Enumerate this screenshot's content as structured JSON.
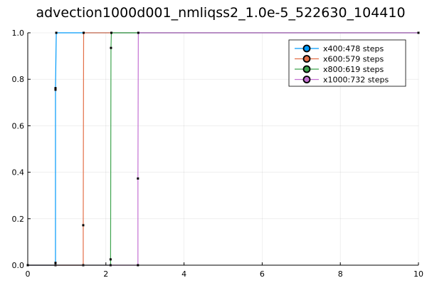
{
  "chart_data": {
    "type": "line",
    "title": "advection1000d001_nmliqss2_1.0e-5_522630_104410",
    "xlim": [
      0,
      10
    ],
    "ylim": [
      0,
      1
    ],
    "x_ticks": [
      "0",
      "2",
      "4",
      "6",
      "8",
      "10"
    ],
    "y_ticks": [
      "0.0",
      "0.2",
      "0.4",
      "0.6",
      "0.8",
      "1.0"
    ],
    "grid": true,
    "legend_position": "top-right",
    "series": [
      {
        "name": "x400:478 steps",
        "color": "#009AFA",
        "points": [
          [
            0,
            0
          ],
          [
            0.71,
            0
          ],
          [
            0.71,
            0.01
          ],
          [
            0.71,
            0.755
          ],
          [
            0.71,
            0.762
          ],
          [
            0.73,
            1.0
          ],
          [
            10,
            1.0
          ]
        ]
      },
      {
        "name": "x600:579 steps",
        "color": "#E36F47",
        "points": [
          [
            0,
            0
          ],
          [
            1.42,
            0
          ],
          [
            1.42,
            0.172
          ],
          [
            1.43,
            1.0
          ],
          [
            10,
            1.0
          ]
        ]
      },
      {
        "name": "x800:619 steps",
        "color": "#3EA44E",
        "points": [
          [
            0,
            0
          ],
          [
            2.12,
            0
          ],
          [
            2.12,
            0.025
          ],
          [
            2.13,
            0.935
          ],
          [
            2.14,
            1.0
          ],
          [
            10,
            1.0
          ]
        ]
      },
      {
        "name": "x1000:732 steps",
        "color": "#C371D2",
        "points": [
          [
            0,
            0
          ],
          [
            2.82,
            0
          ],
          [
            2.82,
            0.373
          ],
          [
            2.83,
            1.0
          ],
          [
            10,
            1.0
          ]
        ]
      }
    ]
  }
}
